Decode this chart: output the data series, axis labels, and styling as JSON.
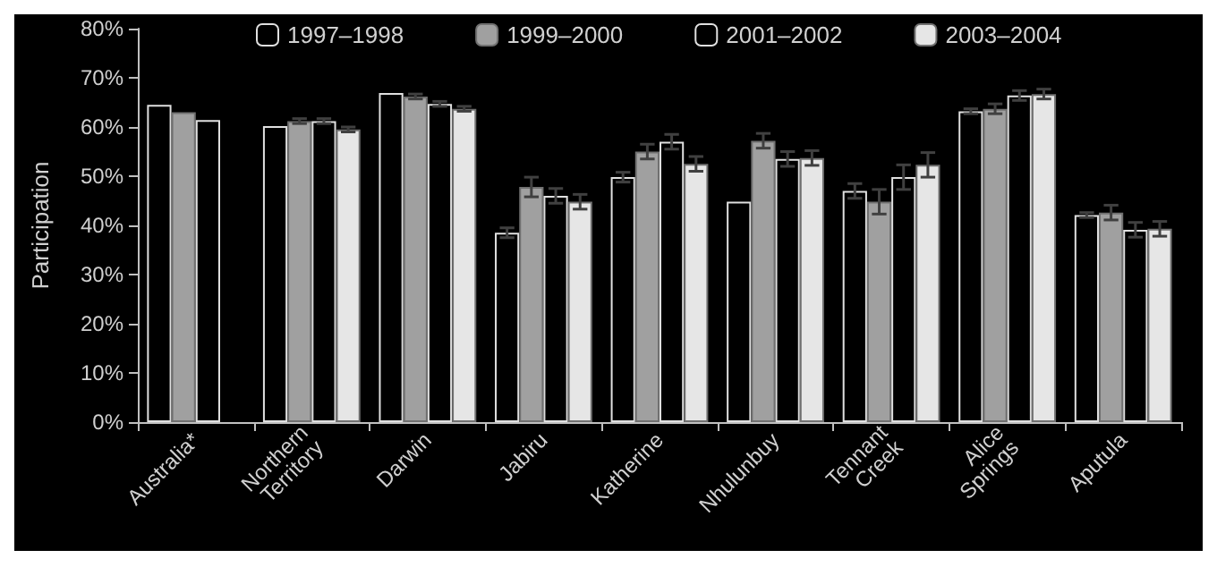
{
  "chart_data": {
    "type": "bar",
    "ylabel": "Participation",
    "categories": [
      "Australia*",
      "Northern Territory",
      "Darwin",
      "Jabiru",
      "Katherine",
      "Nhulunbuy",
      "Tennant Creek",
      "Alice Springs",
      "Aputula"
    ],
    "series": [
      {
        "name": "1997–1998",
        "color": "#000000",
        "values": [
          64.5,
          60.2,
          66.9,
          38.5,
          49.8,
          44.8,
          47,
          63.2,
          42.1
        ],
        "errors": [
          null,
          null,
          null,
          1,
          1,
          null,
          1.5,
          0.5,
          0.5
        ]
      },
      {
        "name": "1999–2000",
        "color": "#a0a0a0",
        "values": [
          63,
          61.2,
          66.2,
          47.8,
          55,
          57.2,
          44.8,
          63.7,
          42.6
        ],
        "errors": [
          null,
          0.5,
          0.5,
          2,
          1.5,
          1.5,
          2.5,
          1,
          1.5
        ]
      },
      {
        "name": "2001–2002",
        "color": "#000000",
        "values": [
          61.4,
          61.2,
          64.7,
          46,
          57,
          53.5,
          49.8,
          66.4,
          39.1
        ],
        "errors": [
          null,
          0.5,
          0.5,
          1.5,
          1.5,
          1.5,
          2.5,
          1,
          1.5
        ]
      },
      {
        "name": "2003–2004",
        "color": "#e6e6e6",
        "values": [
          null,
          59.5,
          63.7,
          44.8,
          52.5,
          53.7,
          52.3,
          66.7,
          39.3
        ],
        "errors": [
          null,
          0.5,
          0.5,
          1.5,
          1.5,
          1.5,
          2.5,
          1,
          1.5
        ]
      }
    ],
    "ylim": [
      0,
      80
    ],
    "yticks": [
      {
        "value": 0,
        "label": "0%"
      },
      {
        "value": 10,
        "label": "10%"
      },
      {
        "value": 20,
        "label": "20%"
      },
      {
        "value": 30,
        "label": "30%"
      },
      {
        "value": 40,
        "label": "40%"
      },
      {
        "value": 50,
        "label": "50%"
      },
      {
        "value": 60,
        "label": "60%"
      },
      {
        "value": 70,
        "label": "70%"
      },
      {
        "value": 80,
        "label": "80%"
      }
    ],
    "grid": false,
    "legend": "top"
  }
}
